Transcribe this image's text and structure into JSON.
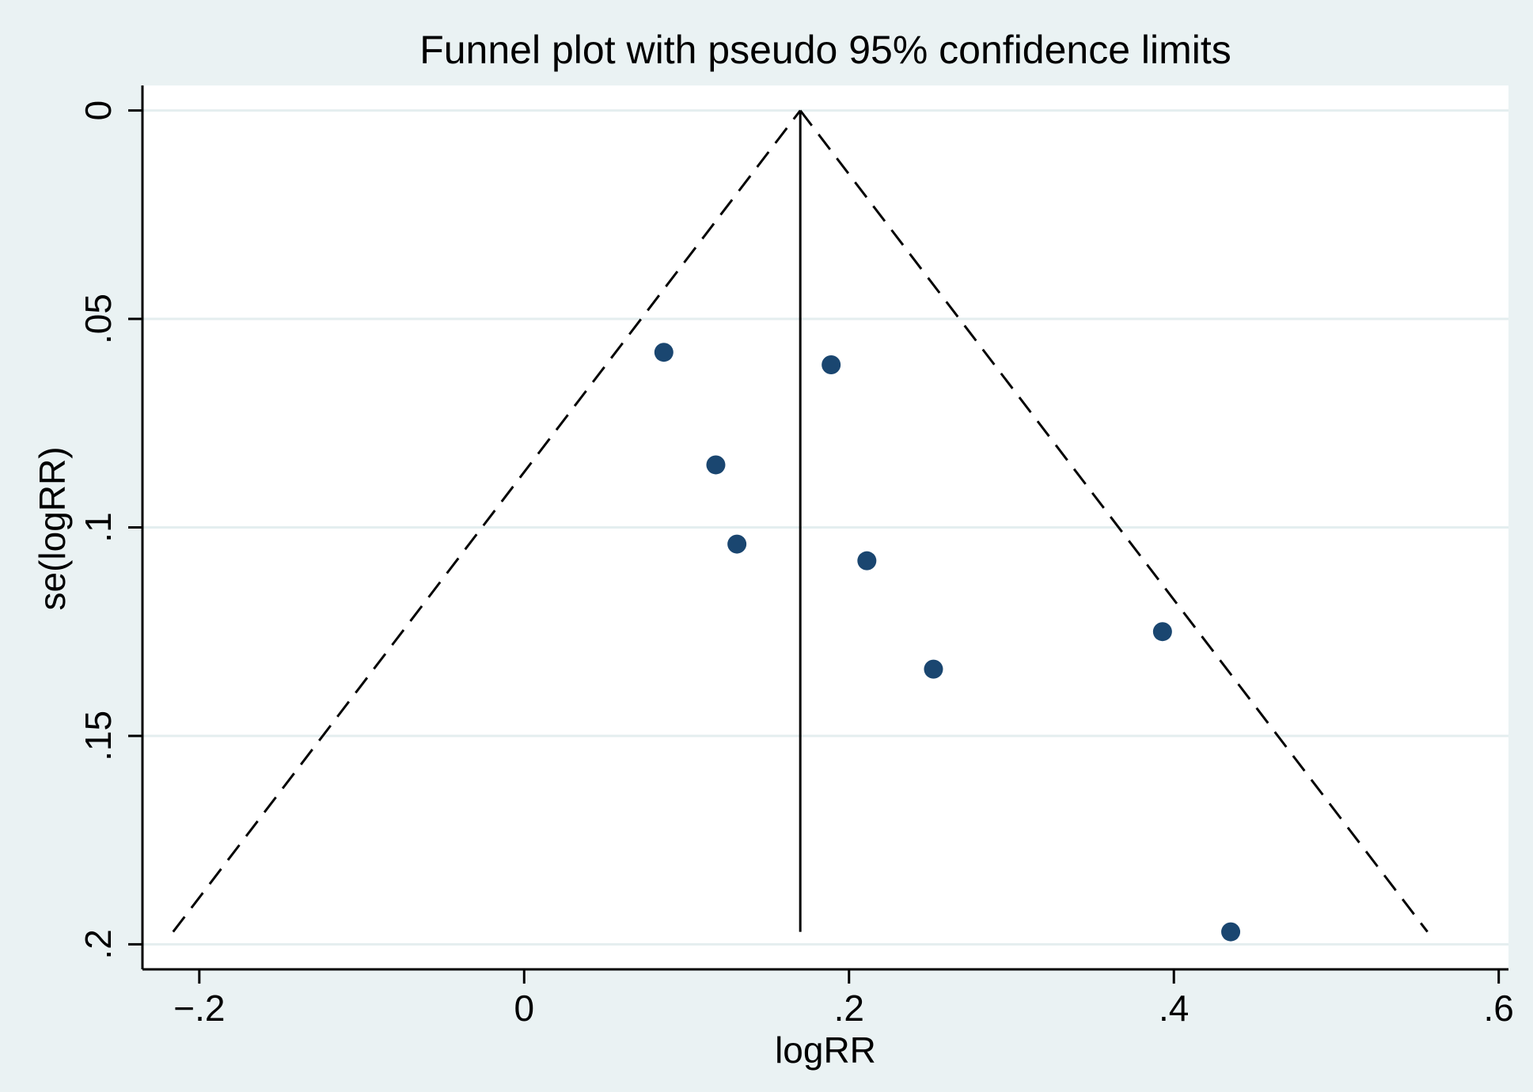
{
  "chart_data": {
    "type": "scatter",
    "title": "Funnel plot with pseudo 95% confidence limits",
    "xlabel": "logRR",
    "ylabel": "se(logRR)",
    "xlim": [
      -0.235,
      0.606
    ],
    "ylim": [
      0.206,
      -0.006
    ],
    "y_axis_reversed": true,
    "grid": "horizontal",
    "xticks": [
      {
        "value": -0.2,
        "label": "−.2"
      },
      {
        "value": 0,
        "label": "0"
      },
      {
        "value": 0.2,
        "label": ".2"
      },
      {
        "value": 0.4,
        "label": ".4"
      },
      {
        "value": 0.6,
        "label": ".6"
      }
    ],
    "yticks": [
      {
        "value": 0,
        "label": "0"
      },
      {
        "value": 0.05,
        "label": ".05"
      },
      {
        "value": 0.1,
        "label": ".1"
      },
      {
        "value": 0.15,
        "label": ".15"
      },
      {
        "value": 0.2,
        "label": ".2"
      }
    ],
    "pooled_estimate": 0.17,
    "se_max": 0.197,
    "points": [
      {
        "x": 0.086,
        "y": 0.058
      },
      {
        "x": 0.189,
        "y": 0.061
      },
      {
        "x": 0.118,
        "y": 0.085
      },
      {
        "x": 0.131,
        "y": 0.104
      },
      {
        "x": 0.211,
        "y": 0.108
      },
      {
        "x": 0.393,
        "y": 0.125
      },
      {
        "x": 0.252,
        "y": 0.134
      },
      {
        "x": 0.435,
        "y": 0.197
      }
    ],
    "colors": {
      "background": "#eaf2f3",
      "plot_area": "#ffffff",
      "gridline": "#e4eeef",
      "marker": "#1a4670",
      "lines": "#000000"
    }
  }
}
